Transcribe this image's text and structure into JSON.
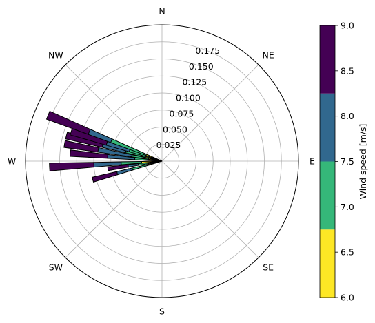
{
  "chart_data": {
    "type": "windrose",
    "compass_labels": [
      "N",
      "NE",
      "E",
      "SE",
      "S",
      "SW",
      "W",
      "NW"
    ],
    "radial_ticks": [
      0.025,
      0.05,
      0.075,
      0.1,
      0.125,
      0.15,
      0.175
    ],
    "radial_tick_labels": [
      "0.025",
      "0.050",
      "0.075",
      "0.100",
      "0.125",
      "0.150",
      "0.175"
    ],
    "rmax": 0.2,
    "grid": true,
    "bin_width_deg": 4,
    "speed_bins": [
      {
        "range": [
          6.0,
          6.75
        ],
        "color": "#fde725"
      },
      {
        "range": [
          6.75,
          7.5
        ],
        "color": "#35b779"
      },
      {
        "range": [
          7.5,
          8.25
        ],
        "color": "#31688e"
      },
      {
        "range": [
          8.25,
          9.0
        ],
        "color": "#440154"
      }
    ],
    "sectors": [
      {
        "direction_deg": 255,
        "values": [
          0.02,
          0.045,
          0.068,
          0.105
        ]
      },
      {
        "direction_deg": 262,
        "values": [
          0.015,
          0.035,
          0.05,
          0.08
        ]
      },
      {
        "direction_deg": 267,
        "values": [
          0.03,
          0.06,
          0.1,
          0.165
        ]
      },
      {
        "direction_deg": 275,
        "values": [
          0.015,
          0.04,
          0.08,
          0.135
        ]
      },
      {
        "direction_deg": 280,
        "values": [
          0.02,
          0.045,
          0.095,
          0.145
        ]
      },
      {
        "direction_deg": 285,
        "values": [
          0.025,
          0.055,
          0.09,
          0.145
        ]
      },
      {
        "direction_deg": 288,
        "values": [
          0.02,
          0.05,
          0.085,
          0.14
        ]
      },
      {
        "direction_deg": 292,
        "values": [
          0.025,
          0.08,
          0.115,
          0.18
        ]
      }
    ],
    "colorbar": {
      "label": "Wind speed [m/s]",
      "min": 6.0,
      "max": 9.0,
      "tick_values": [
        6.0,
        6.5,
        7.0,
        7.5,
        8.0,
        8.5,
        9.0
      ],
      "tick_labels": [
        "6.0",
        "6.5",
        "7.0",
        "7.5",
        "8.0",
        "8.5",
        "9.0"
      ]
    }
  }
}
